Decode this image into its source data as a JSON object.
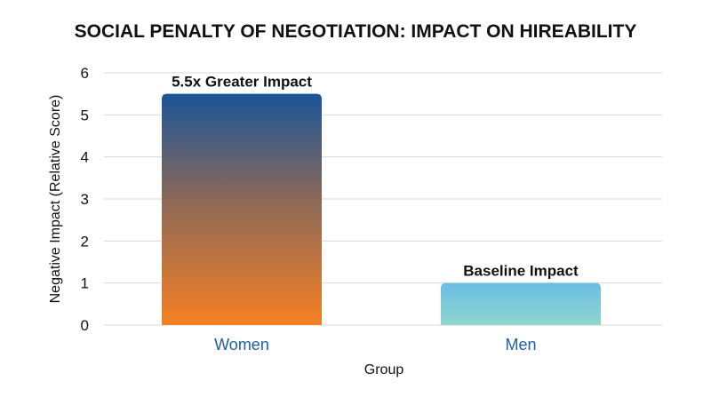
{
  "chart_data": {
    "type": "bar",
    "title": "SOCIAL PENALTY OF NEGOTIATION: IMPACT ON HIREABILITY",
    "xlabel": "Group",
    "ylabel": "Negative Impact (Relative Score)",
    "categories": [
      "Women",
      "Men"
    ],
    "values": [
      5.5,
      1.0
    ],
    "annotations": [
      "5.5x Greater Impact",
      "Baseline Impact"
    ],
    "ylim": [
      0,
      6
    ],
    "yticks": [
      "0",
      "1",
      "2",
      "3",
      "4",
      "5",
      "6"
    ],
    "grid": true,
    "colors": {
      "women_top": "#1a5599",
      "women_mid": "#8a6858",
      "women_bottom": "#f58024",
      "men_top": "#6bbde6",
      "men_bottom": "#8fd6cc",
      "category_text": "#1f5fa8"
    }
  }
}
